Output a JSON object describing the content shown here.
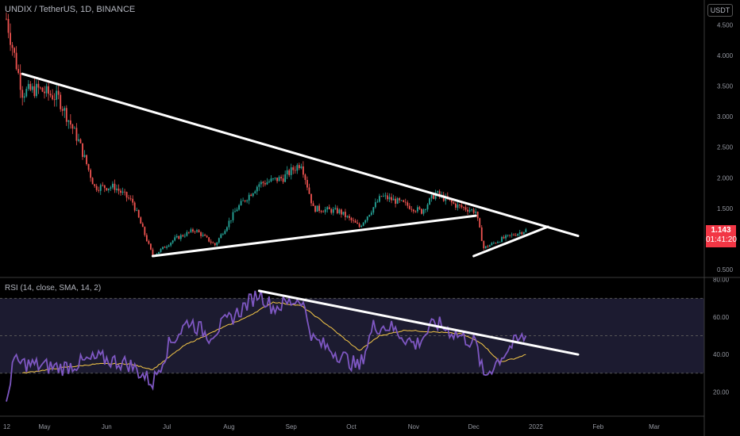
{
  "header": {
    "title": "UNDIX / TetherUS, 1D, BINANCE",
    "currency_badge": "USDT"
  },
  "price_tag": {
    "price": "1.143",
    "countdown": "01:41:20",
    "color": "#f23645"
  },
  "rsi_pane": {
    "title": "RSI (14, close, SMA, 14, 2)",
    "line_color": "#7e57c2",
    "ma_color": "#f7c948",
    "band_color": "#1c1b30"
  },
  "chart_data": [
    {
      "type": "candlestick",
      "title": "UNDIX / TetherUS, 1D, BINANCE",
      "y_ticks": [
        "4.500",
        "4.000",
        "3.500",
        "3.000",
        "2.500",
        "2.000",
        "1.500",
        "0.500"
      ],
      "x_ticks": [
        "12",
        "May",
        "Jun",
        "Jul",
        "Aug",
        "Sep",
        "Oct",
        "Nov",
        "Dec",
        "2022",
        "Feb",
        "Mar"
      ],
      "ylim": [
        0.5,
        4.7
      ],
      "last_price": 1.143,
      "candle_colors": {
        "up": "#26a69a",
        "down": "#ef5350"
      },
      "price_path": [
        [
          "2021-04-12",
          4.6
        ],
        [
          "2021-04-20",
          3.4
        ],
        [
          "2021-04-28",
          3.45
        ],
        [
          "2021-05-08",
          3.3
        ],
        [
          "2021-05-18",
          2.6
        ],
        [
          "2021-05-26",
          1.85
        ],
        [
          "2021-06-05",
          1.85
        ],
        [
          "2021-06-14",
          1.6
        ],
        [
          "2021-06-24",
          0.72
        ],
        [
          "2021-07-05",
          1.0
        ],
        [
          "2021-07-15",
          1.15
        ],
        [
          "2021-07-25",
          0.9
        ],
        [
          "2021-08-05",
          1.5
        ],
        [
          "2021-08-16",
          1.9
        ],
        [
          "2021-08-28",
          2.0
        ],
        [
          "2021-09-06",
          2.25
        ],
        [
          "2021-09-12",
          1.5
        ],
        [
          "2021-09-25",
          1.45
        ],
        [
          "2021-10-05",
          1.2
        ],
        [
          "2021-10-16",
          1.7
        ],
        [
          "2021-10-25",
          1.6
        ],
        [
          "2021-11-05",
          1.45
        ],
        [
          "2021-11-12",
          1.75
        ],
        [
          "2021-11-22",
          1.55
        ],
        [
          "2021-12-02",
          1.45
        ],
        [
          "2021-12-06",
          0.85
        ],
        [
          "2021-12-15",
          1.0
        ],
        [
          "2021-12-27",
          1.143
        ]
      ],
      "trend_lines": [
        {
          "from": [
            "2021-04-20",
            3.7
          ],
          "to": [
            "2022-01-22",
            1.05
          ]
        },
        {
          "from": [
            "2021-06-24",
            0.72
          ],
          "to": [
            "2021-12-02",
            1.38
          ]
        },
        {
          "from": [
            "2021-12-01",
            0.72
          ],
          "to": [
            "2022-01-07",
            1.2
          ]
        }
      ]
    },
    {
      "type": "line",
      "title": "RSI (14, close, SMA, 14, 2)",
      "y_ticks": [
        "80.00",
        "60.00",
        "40.00",
        "20.00"
      ],
      "ylim": [
        10,
        82
      ],
      "band": [
        30,
        70
      ],
      "series": [
        {
          "name": "RSI",
          "points": [
            [
              "2021-04-12",
              11
            ],
            [
              "2021-04-15",
              36
            ],
            [
              "2021-04-28",
              34
            ],
            [
              "2021-05-10",
              33
            ],
            [
              "2021-05-28",
              38
            ],
            [
              "2021-06-12",
              35
            ],
            [
              "2021-06-24",
              25
            ],
            [
              "2021-07-02",
              45
            ],
            [
              "2021-07-12",
              58
            ],
            [
              "2021-07-22",
              50
            ],
            [
              "2021-08-05",
              62
            ],
            [
              "2021-08-16",
              73
            ],
            [
              "2021-08-23",
              65
            ],
            [
              "2021-09-06",
              70
            ],
            [
              "2021-09-12",
              48
            ],
            [
              "2021-09-25",
              40
            ],
            [
              "2021-10-05",
              33
            ],
            [
              "2021-10-12",
              55
            ],
            [
              "2021-10-20",
              55
            ],
            [
              "2021-11-02",
              45
            ],
            [
              "2021-11-12",
              57
            ],
            [
              "2021-11-22",
              51
            ],
            [
              "2021-12-02",
              46
            ],
            [
              "2021-12-06",
              28
            ],
            [
              "2021-12-14",
              38
            ],
            [
              "2021-12-20",
              45
            ],
            [
              "2021-12-27",
              50
            ]
          ]
        },
        {
          "name": "RSI-based MA",
          "points": [
            [
              "2021-04-20",
              30
            ],
            [
              "2021-05-10",
              33
            ],
            [
              "2021-05-28",
              35
            ],
            [
              "2021-06-12",
              35
            ],
            [
              "2021-06-24",
              32
            ],
            [
              "2021-07-10",
              45
            ],
            [
              "2021-07-28",
              54
            ],
            [
              "2021-08-10",
              60
            ],
            [
              "2021-08-23",
              68
            ],
            [
              "2021-09-06",
              66
            ],
            [
              "2021-09-20",
              55
            ],
            [
              "2021-10-05",
              42
            ],
            [
              "2021-10-15",
              50
            ],
            [
              "2021-10-28",
              53
            ],
            [
              "2021-11-12",
              52
            ],
            [
              "2021-11-25",
              51
            ],
            [
              "2021-12-05",
              46
            ],
            [
              "2021-12-14",
              36
            ],
            [
              "2021-12-22",
              38
            ],
            [
              "2021-12-27",
              40
            ]
          ]
        }
      ],
      "trend_lines": [
        {
          "from": [
            "2021-08-16",
            74
          ],
          "to": [
            "2022-01-22",
            40
          ]
        }
      ]
    }
  ]
}
